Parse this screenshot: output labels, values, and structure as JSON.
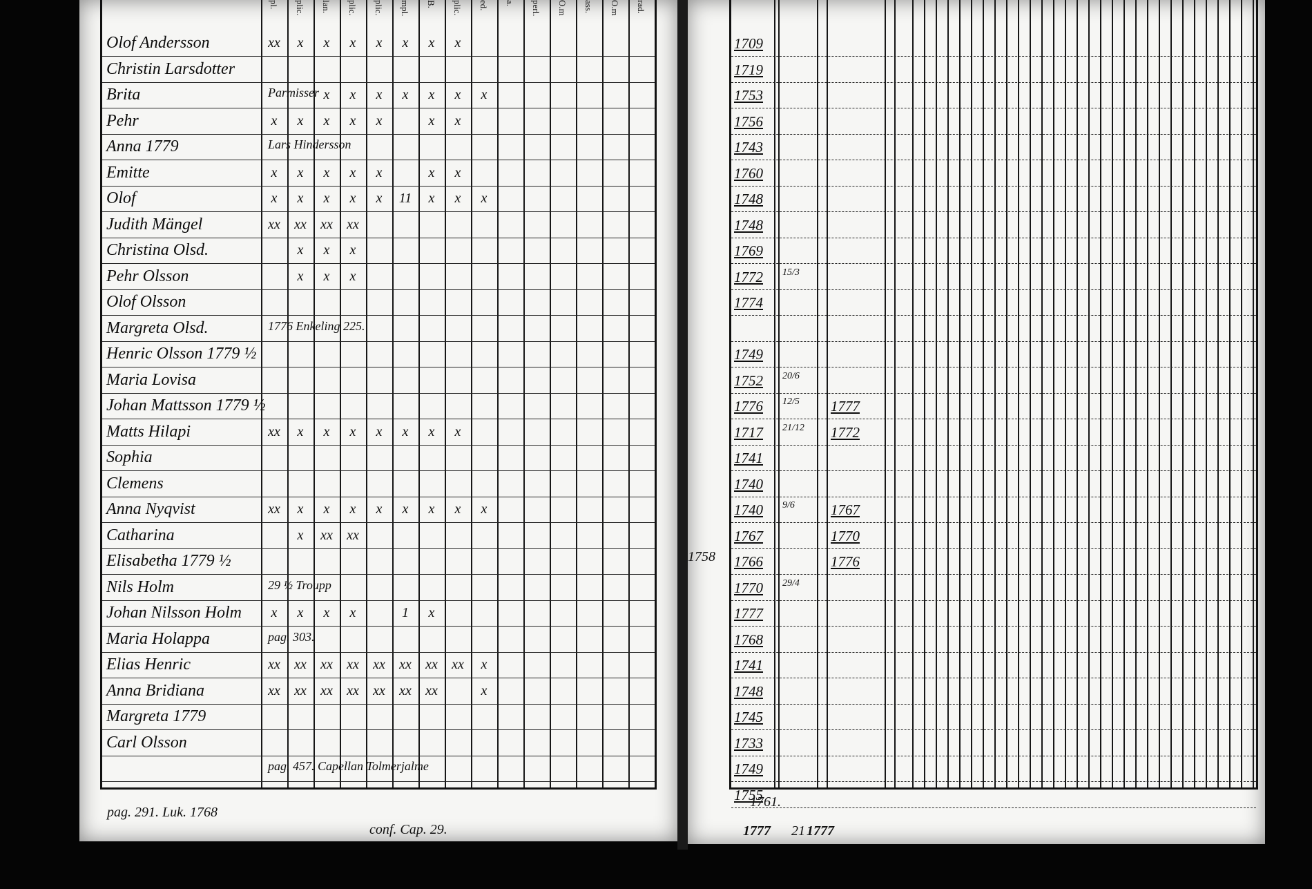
{
  "left_page": {
    "column_headers": [
      "pl.",
      "plic.",
      "lan.",
      "plic.",
      "plic.",
      "mpl.",
      "B.",
      "plic.",
      "ed.",
      "a.",
      "perl.",
      "O.m",
      "ass.",
      "O.m",
      "rad."
    ],
    "rows": [
      {
        "num": "",
        "name": "Olof Andersson",
        "marks": [
          "xx",
          "x",
          "x",
          "x",
          "x",
          "x",
          "x",
          "x",
          ""
        ],
        "note": ""
      },
      {
        "num": "",
        "name": "Christin Larsdotter",
        "marks": [],
        "note": ""
      },
      {
        "num": "",
        "name": "Brita",
        "marks": [
          "",
          "",
          "x",
          "x",
          "x",
          "x",
          "x",
          "x",
          "x"
        ],
        "note": "Parmisser"
      },
      {
        "num": "",
        "name": "Pehr",
        "marks": [
          "x",
          "x",
          "x",
          "x",
          "x",
          "",
          "x",
          "x",
          ""
        ],
        "note": ""
      },
      {
        "num": "",
        "name": "Anna 1779",
        "marks": [],
        "note": "Lars Hindersson"
      },
      {
        "num": "",
        "name": "Emitte",
        "marks": [
          "x",
          "x",
          "x",
          "x",
          "x",
          "",
          "x",
          "x",
          ""
        ],
        "note": ""
      },
      {
        "num": "",
        "name": "Olof",
        "marks": [
          "x",
          "x",
          "x",
          "x",
          "x",
          "11",
          "x",
          "x",
          "x"
        ],
        "note": ""
      },
      {
        "num": "",
        "name": "Judith Mängel",
        "marks": [
          "xx",
          "xx",
          "xx",
          "xx",
          "",
          "",
          "",
          "",
          ""
        ],
        "note": ""
      },
      {
        "num": "",
        "name": "Christina Olsd.",
        "marks": [
          "",
          "x",
          "x",
          "x"
        ],
        "note": ""
      },
      {
        "num": "",
        "name": "Pehr Olsson",
        "marks": [
          "",
          "x",
          "x",
          "x"
        ],
        "note": ""
      },
      {
        "num": "",
        "name": "Olof Olsson",
        "marks": [],
        "note": ""
      },
      {
        "num": "",
        "name": "Margreta Olsd.",
        "marks": [],
        "note": "1776 Enkeling 225."
      },
      {
        "num": "",
        "name": "Henric Olsson 1779 ½",
        "marks": [],
        "note": ""
      },
      {
        "num": "",
        "name": "Maria Lovisa",
        "marks": [],
        "note": ""
      },
      {
        "num": "",
        "name": "Johan Mattsson 1779 ½",
        "marks": [],
        "note": ""
      },
      {
        "num": "",
        "name": "Matts Hilapi",
        "marks": [
          "xx",
          "x",
          "x",
          "x",
          "x",
          "x",
          "x",
          "x",
          ""
        ],
        "note": ""
      },
      {
        "num": "",
        "name": "Sophia",
        "marks": [],
        "note": ""
      },
      {
        "num": "",
        "name": "Clemens",
        "marks": [],
        "note": ""
      },
      {
        "num": "",
        "name": "Anna Nyqvist",
        "marks": [
          "xx",
          "x",
          "x",
          "x",
          "x",
          "x",
          "x",
          "x",
          "x"
        ],
        "note": ""
      },
      {
        "num": "",
        "name": "Catharina",
        "marks": [
          "",
          "x",
          "xx",
          "xx"
        ],
        "note": ""
      },
      {
        "num": "",
        "name": "Elisabetha 1779 ½",
        "marks": [],
        "note": ""
      },
      {
        "num": "",
        "name": "Nils Holm",
        "marks": [],
        "note": "29 ½  Troupp"
      },
      {
        "num": "",
        "name": "Johan Nilsson Holm",
        "marks": [
          "x",
          "x",
          "x",
          "x",
          "",
          "1",
          "x"
        ],
        "note": ""
      },
      {
        "num": "",
        "name": "Maria Holappa",
        "marks": [],
        "note": "pag. 303."
      },
      {
        "num": "",
        "name": "Elias Henric",
        "marks": [
          "xx",
          "xx",
          "xx",
          "xx",
          "xx",
          "xx",
          "xx",
          "xx",
          "x"
        ],
        "note": ""
      },
      {
        "num": "",
        "name": "Anna Bridiana",
        "marks": [
          "xx",
          "xx",
          "xx",
          "xx",
          "xx",
          "xx",
          "xx",
          "",
          "x"
        ],
        "note": ""
      },
      {
        "num": "",
        "name": "Margreta 1779",
        "marks": [],
        "note": ""
      },
      {
        "num": "",
        "name": "Carl Olsson",
        "marks": [],
        "note": ""
      },
      {
        "num": "",
        "name": "",
        "marks": [],
        "note": "pag. 457.  Capellan Tolmerjalme"
      }
    ],
    "footer_notes": [
      "pag. 291. Luk. 1768",
      "conf. Cap. 29."
    ]
  },
  "right_page": {
    "birth_years": [
      "1709",
      "1719",
      "1753",
      "1756",
      "1743",
      "1760",
      "1748",
      "1748",
      "1769",
      "1772",
      "1774",
      "",
      "1749",
      "1752",
      "1776",
      "1717",
      "1741",
      "1740",
      "1740",
      "1767",
      "1766",
      "1770",
      "1777",
      "1768",
      "1741",
      "1748",
      "1745",
      "1733",
      "1749",
      "1755"
    ],
    "second_column": {
      "14": "1777",
      "15": "1772",
      "18": "1767",
      "19": "1770",
      "20": "1776"
    },
    "day_month": {
      "9": "15/3",
      "13": "20/6",
      "14": "12/5",
      "15": "21/12",
      "18": "9/6",
      "21": "29/4"
    },
    "margin_year": "1758",
    "footer_years": [
      "1761.",
      "1777",
      "21",
      "1777"
    ]
  },
  "colors": {
    "ink": "#111111",
    "paper": "#f6f6f4",
    "background": "#050505"
  }
}
